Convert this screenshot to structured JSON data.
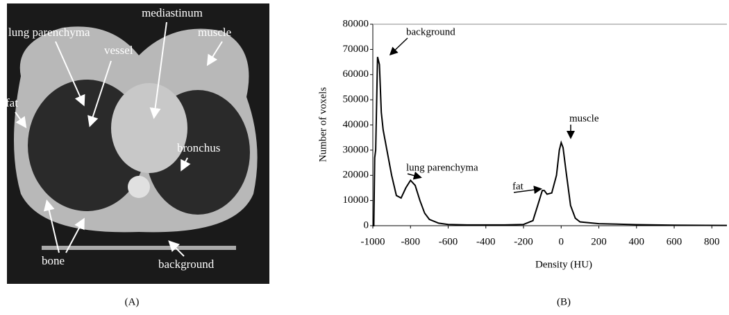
{
  "panel_a": {
    "caption": "(A)",
    "labels": [
      "mediastinum",
      "lung parenchyma",
      "muscle",
      "vessel",
      "fat",
      "bronchus",
      "bone",
      "background"
    ]
  },
  "chart_data": {
    "type": "line",
    "caption": "(B)",
    "xlabel": "Density (HU)",
    "ylabel": "Number of voxels",
    "x": [
      -1000,
      -995,
      -990,
      -985,
      -975,
      -965,
      -955,
      -945,
      -925,
      -900,
      -875,
      -850,
      -825,
      -800,
      -775,
      -750,
      -725,
      -700,
      -650,
      -600,
      -500,
      -400,
      -300,
      -200,
      -150,
      -125,
      -100,
      -90,
      -75,
      -50,
      -25,
      -10,
      0,
      10,
      25,
      50,
      75,
      100,
      200,
      400,
      600,
      880
    ],
    "values": [
      0,
      0,
      27000,
      30000,
      67000,
      64000,
      45000,
      38000,
      30000,
      20000,
      12000,
      11000,
      15000,
      18000,
      16000,
      10000,
      5000,
      2500,
      1000,
      500,
      300,
      300,
      300,
      500,
      2000,
      8000,
      14000,
      14000,
      12500,
      13000,
      20000,
      30000,
      33000,
      31000,
      22000,
      8000,
      3000,
      1500,
      800,
      400,
      200,
      100
    ],
    "color": "#000000",
    "xlim": [
      -1000,
      880
    ],
    "ylim": [
      0,
      80000
    ],
    "xticks": [
      -1000,
      -800,
      -600,
      -400,
      -200,
      0,
      200,
      400,
      600,
      800
    ],
    "yticks": [
      0,
      10000,
      20000,
      30000,
      40000,
      50000,
      60000,
      70000,
      80000
    ],
    "annotations": [
      "background",
      "lung parenchyma",
      "fat",
      "muscle"
    ]
  }
}
